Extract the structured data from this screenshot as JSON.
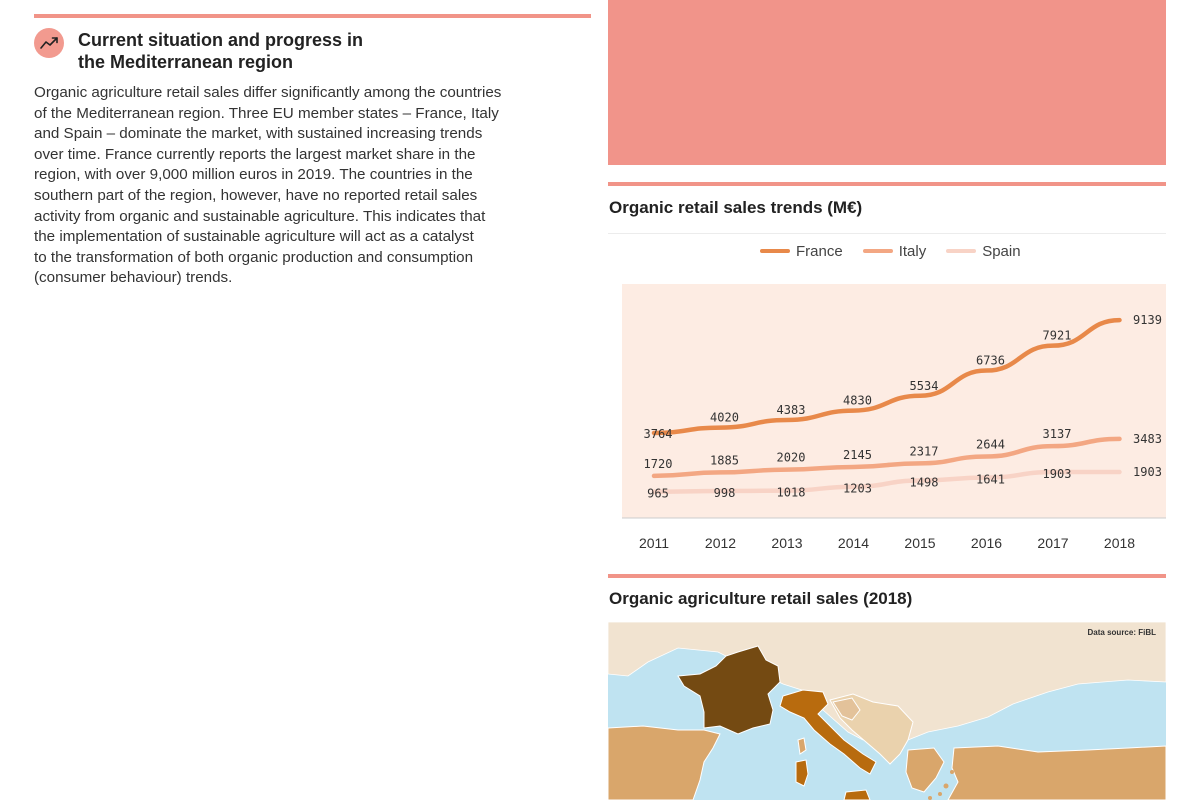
{
  "section": {
    "title_line1": "Current situation and progress in",
    "title_line2": "the Mediterranean region",
    "icon": "trending-up-icon",
    "body_lines": [
      "Organic agriculture retail sales differ significantly among the countries",
      "of the Mediterranean region. Three EU member states – France, Italy",
      "and Spain – dominate the market, with sustained increasing trends",
      "over time. France currently reports the largest market share in the",
      "region, with over 9,000 million euros in 2019. The countries in the",
      "southern part of the region, however, have no reported retail sales",
      "activity from organic and sustainable agriculture. This indicates that",
      "the implementation of sustainable agriculture will act as a catalyst",
      "to the transformation of both organic production and consumption",
      "(consumer behaviour) trends."
    ]
  },
  "chart_panel": {
    "title": "Organic retail sales trends (M€)"
  },
  "chart_data": {
    "type": "line",
    "title": "Organic retail sales trends (M€)",
    "xlabel": "",
    "ylabel": "",
    "categories": [
      "2011",
      "2012",
      "2013",
      "2014",
      "2015",
      "2016",
      "2017",
      "2018"
    ],
    "series": [
      {
        "name": "France",
        "color": "#e8894a",
        "values": [
          3764,
          4020,
          4383,
          4830,
          5534,
          6736,
          7921,
          9139
        ]
      },
      {
        "name": "Italy",
        "color": "#f3a783",
        "values": [
          1720,
          1885,
          2020,
          2145,
          2317,
          2644,
          3137,
          3483
        ]
      },
      {
        "name": "Spain",
        "color": "#f8d3c6",
        "values": [
          965,
          998,
          1018,
          1203,
          1498,
          1641,
          1903,
          1903
        ]
      }
    ],
    "ylim": [
      0,
      10000
    ],
    "grid": false,
    "legend_position": "top",
    "plot_background": "#fdece3",
    "data_labels": true
  },
  "map_panel": {
    "title": "Organic agriculture retail sales (2018)",
    "source": "Data source: FiBL"
  },
  "colors": {
    "accent": "#f1948a",
    "sea": "#bfe3f1",
    "france": "#744a12",
    "italy": "#b86b0e",
    "spain": "#d9a66b",
    "light_land": "#f1e3d0"
  }
}
